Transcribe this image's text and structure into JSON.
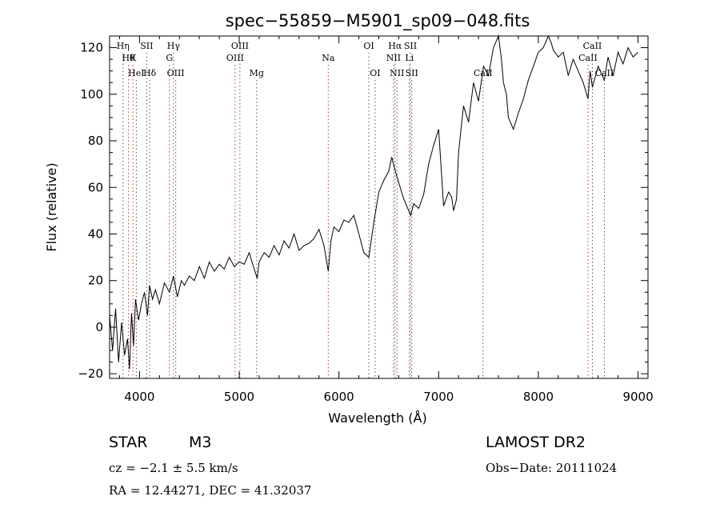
{
  "chart_data": {
    "type": "line",
    "title": "spec−55859−M5901_sp09−048.fits",
    "xlabel": "Wavelength (Å)",
    "ylabel": "Flux (relative)",
    "xlim": [
      3700,
      9100
    ],
    "ylim": [
      -22,
      125
    ],
    "xticks": [
      4000,
      5000,
      6000,
      7000,
      8000,
      9000
    ],
    "yticks": [
      -20,
      0,
      20,
      40,
      60,
      80,
      100,
      120
    ],
    "ytick_labels": [
      "−20",
      "0",
      "20",
      "40",
      "60",
      "80",
      "100",
      "120"
    ],
    "grid": false,
    "series": [
      {
        "x": [
          3700,
          3730,
          3760,
          3790,
          3820,
          3850,
          3880,
          3900,
          3920,
          3940,
          3960,
          3990,
          4020,
          4050,
          4080,
          4100,
          4130,
          4160,
          4200,
          4250,
          4300,
          4340,
          4380,
          4420,
          4450,
          4500,
          4550,
          4600,
          4650,
          4700,
          4750,
          4800,
          4850,
          4900,
          4950,
          5000,
          5050,
          5100,
          5150,
          5180,
          5200,
          5250,
          5300,
          5350,
          5400,
          5450,
          5500,
          5550,
          5600,
          5650,
          5700,
          5750,
          5800,
          5850,
          5893,
          5920,
          5950,
          6000,
          6050,
          6100,
          6150,
          6200,
          6250,
          6300,
          6350,
          6400,
          6450,
          6500,
          6530,
          6560,
          6600,
          6650,
          6700,
          6720,
          6750,
          6800,
          6850,
          6900,
          6950,
          7000,
          7050,
          7100,
          7130,
          7150,
          7180,
          7200,
          7250,
          7300,
          7350,
          7400,
          7450,
          7500,
          7550,
          7600,
          7630,
          7650,
          7680,
          7700,
          7750,
          7800,
          7850,
          7900,
          7950,
          8000,
          8050,
          8100,
          8130,
          8150,
          8200,
          8250,
          8300,
          8350,
          8400,
          8450,
          8498,
          8520,
          8542,
          8600,
          8662,
          8700,
          8750,
          8800,
          8850,
          8900,
          8950,
          9000
        ],
        "values": [
          5,
          -10,
          8,
          -15,
          2,
          -12,
          -5,
          -18,
          6,
          -8,
          12,
          3,
          10,
          15,
          5,
          18,
          12,
          16,
          10,
          19,
          15,
          22,
          13,
          20,
          18,
          22,
          20,
          26,
          21,
          28,
          24,
          27,
          25,
          30,
          26,
          28,
          27,
          32,
          25,
          21,
          28,
          32,
          30,
          35,
          31,
          37,
          34,
          40,
          33,
          35,
          36,
          38,
          42,
          35,
          24,
          37,
          43,
          41,
          46,
          45,
          48,
          40,
          32,
          30,
          45,
          58,
          63,
          67,
          73,
          68,
          62,
          55,
          50,
          48,
          53,
          51,
          57,
          70,
          78,
          85,
          52,
          58,
          56,
          50,
          55,
          75,
          95,
          88,
          105,
          97,
          112,
          108,
          120,
          125,
          115,
          105,
          100,
          90,
          85,
          92,
          98,
          106,
          112,
          118,
          120,
          125,
          122,
          119,
          116,
          118,
          108,
          115,
          110,
          105,
          98,
          110,
          103,
          112,
          106,
          116,
          108,
          118,
          113,
          120,
          116,
          118
        ]
      }
    ],
    "lines": [
      {
        "wave": 3835,
        "label": "Hη",
        "row": 0
      },
      {
        "wave": 3889,
        "label": "Hθ",
        "row": 1
      },
      {
        "wave": 3934,
        "label": "K",
        "row": 1
      },
      {
        "wave": 3968,
        "label": "HeI",
        "row": 2
      },
      {
        "wave": 4072,
        "label": "SII",
        "row": 0
      },
      {
        "wave": 4102,
        "label": "Hδ",
        "row": 2
      },
      {
        "wave": 4300,
        "label": "G",
        "row": 1
      },
      {
        "wave": 4341,
        "label": "Hγ",
        "row": 0
      },
      {
        "wave": 4363,
        "label": "OIII",
        "row": 2
      },
      {
        "wave": 4959,
        "label": "OIII",
        "row": 1
      },
      {
        "wave": 5007,
        "label": "OIII",
        "row": 0
      },
      {
        "wave": 5175,
        "label": "Mg",
        "row": 2
      },
      {
        "wave": 5893,
        "label": "Na",
        "row": 1
      },
      {
        "wave": 6300,
        "label": "OI",
        "row": 0
      },
      {
        "wave": 6363,
        "label": "OI",
        "row": 2
      },
      {
        "wave": 6548,
        "label": "NII",
        "row": 1
      },
      {
        "wave": 6563,
        "label": "Hα",
        "row": 0
      },
      {
        "wave": 6583,
        "label": "NII",
        "row": 2
      },
      {
        "wave": 6707,
        "label": "Li",
        "row": 1
      },
      {
        "wave": 6717,
        "label": "SII",
        "row": 0
      },
      {
        "wave": 6731,
        "label": "SII",
        "row": 2
      },
      {
        "wave": 7445,
        "label": "CaII",
        "row": 2
      },
      {
        "wave": 8498,
        "label": "CaII",
        "row": 1
      },
      {
        "wave": 8542,
        "label": "CaII",
        "row": 0
      },
      {
        "wave": 8662,
        "label": "CaII",
        "row": 2
      }
    ]
  },
  "info": {
    "object_class": "STAR",
    "subclass": "M3",
    "survey": "LAMOST DR2",
    "cz": "cz = −2.1 ± 5.5 km/s",
    "obs_date": "Obs−Date: 20111024",
    "coords": "RA =  12.44271, DEC =  41.32037"
  }
}
